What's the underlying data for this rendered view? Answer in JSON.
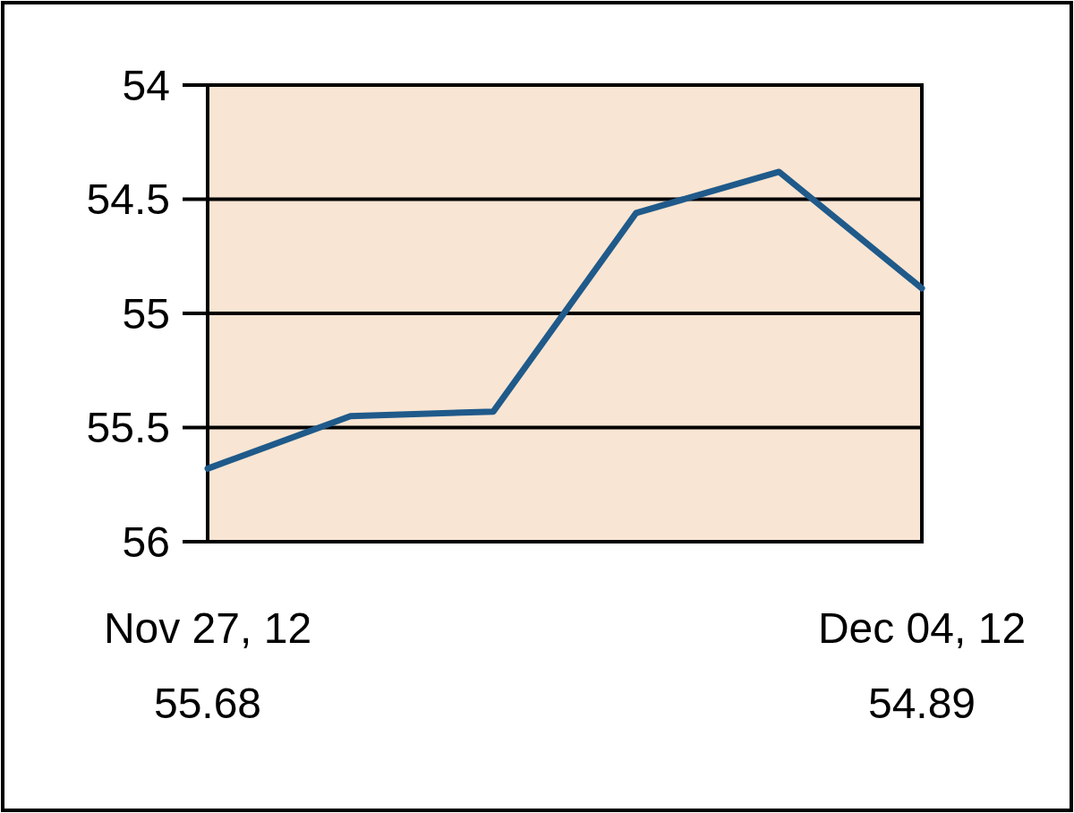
{
  "chart_data": {
    "type": "line",
    "categories": [
      "Nov 27, 12",
      null,
      null,
      null,
      null,
      "Dec 04, 12"
    ],
    "series": [
      {
        "color": "#1f5a8a",
        "values": [
          55.68,
          55.45,
          55.43,
          54.56,
          54.38,
          54.89
        ],
        "value_labels": [
          "55.68",
          null,
          null,
          null,
          null,
          "54.89"
        ]
      }
    ],
    "ylim": [
      56,
      54
    ],
    "yticks": [
      54,
      54.5,
      55,
      55.5,
      56
    ],
    "grid": "y",
    "marker": "none",
    "line_style": "solid"
  }
}
